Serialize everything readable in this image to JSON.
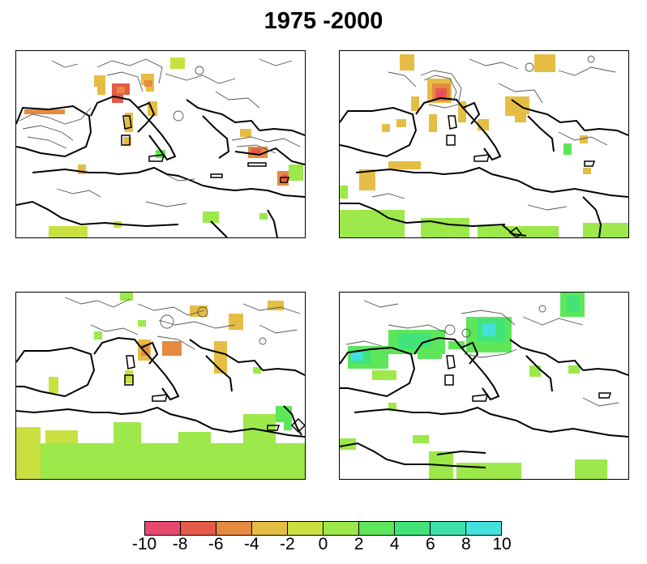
{
  "title": "1975 -2000",
  "colorbar": {
    "ticks": [
      "-10",
      "-8",
      "-6",
      "-4",
      "-2",
      "0",
      "2",
      "4",
      "6",
      "8",
      "10"
    ],
    "colors": [
      "#e8486e",
      "#e55a48",
      "#e58a40",
      "#e6bd44",
      "#c9e040",
      "#9de84a",
      "#5ee65a",
      "#42e47a",
      "#40e0aa",
      "#44e0dc"
    ]
  },
  "panels": [
    {
      "name": "panel-top-left",
      "dominant": "negative",
      "min_level": -8,
      "max_level": 2
    },
    {
      "name": "panel-top-right",
      "dominant": "negative",
      "min_level": -10,
      "max_level": 2
    },
    {
      "name": "panel-bottom-left",
      "dominant": "positive",
      "min_level": -6,
      "max_level": 2
    },
    {
      "name": "panel-bottom-right",
      "dominant": "positive",
      "min_level": -2,
      "max_level": 10
    }
  ]
}
